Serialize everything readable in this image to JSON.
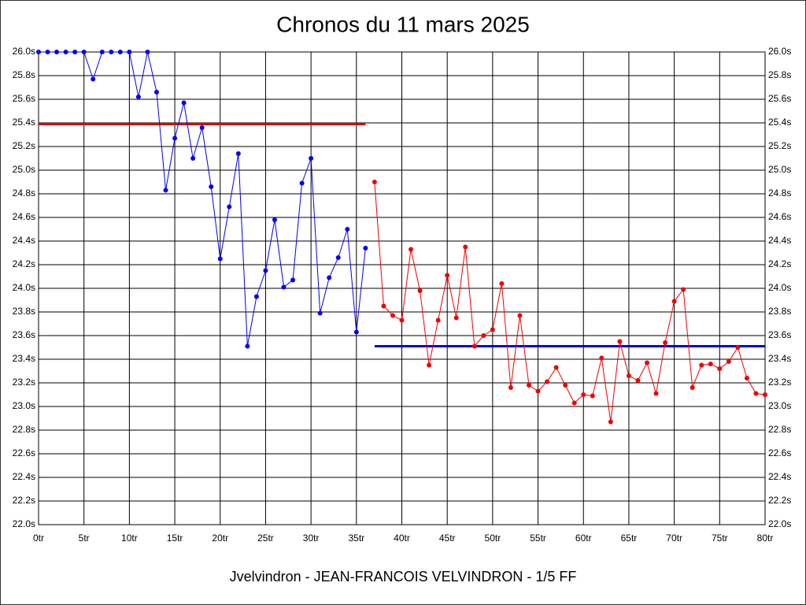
{
  "chart_data": {
    "type": "line",
    "title": "Chronos du 11 mars 2025",
    "footer": "Jvelvindron - JEAN-FRANCOIS VELVINDRON - 1/5 FF",
    "xlim": [
      0,
      80
    ],
    "xticks": [
      {
        "value": 0,
        "label": "0tr"
      },
      {
        "value": 5,
        "label": "5tr"
      },
      {
        "value": 10,
        "label": "10tr"
      },
      {
        "value": 15,
        "label": "15tr"
      },
      {
        "value": 20,
        "label": "20tr"
      },
      {
        "value": 25,
        "label": "25tr"
      },
      {
        "value": 30,
        "label": "30tr"
      },
      {
        "value": 35,
        "label": "35tr"
      },
      {
        "value": 40,
        "label": "40tr"
      },
      {
        "value": 45,
        "label": "45tr"
      },
      {
        "value": 50,
        "label": "50tr"
      },
      {
        "value": 55,
        "label": "55tr"
      },
      {
        "value": 60,
        "label": "60tr"
      },
      {
        "value": 65,
        "label": "65tr"
      },
      {
        "value": 70,
        "label": "70tr"
      },
      {
        "value": 75,
        "label": "75tr"
      },
      {
        "value": 80,
        "label": "80tr"
      }
    ],
    "ylim": [
      22,
      26
    ],
    "yticks": [
      {
        "value": 22,
        "label": "22.0s"
      },
      {
        "value": 22.2,
        "label": "22.2s"
      },
      {
        "value": 22.4,
        "label": "22.4s"
      },
      {
        "value": 22.6,
        "label": "22.6s"
      },
      {
        "value": 22.8,
        "label": "22.8s"
      },
      {
        "value": 23,
        "label": "23.0s"
      },
      {
        "value": 23.2,
        "label": "23.2s"
      },
      {
        "value": 23.4,
        "label": "23.4s"
      },
      {
        "value": 23.6,
        "label": "23.6s"
      },
      {
        "value": 23.8,
        "label": "23.8s"
      },
      {
        "value": 24,
        "label": "24.0s"
      },
      {
        "value": 24.2,
        "label": "24.2s"
      },
      {
        "value": 24.4,
        "label": "24.4s"
      },
      {
        "value": 24.6,
        "label": "24.6s"
      },
      {
        "value": 24.8,
        "label": "24.8s"
      },
      {
        "value": 25,
        "label": "25.0s"
      },
      {
        "value": 25.2,
        "label": "25.2s"
      },
      {
        "value": 25.4,
        "label": "25.4s"
      },
      {
        "value": 25.6,
        "label": "25.6s"
      },
      {
        "value": 25.8,
        "label": "25.8s"
      },
      {
        "value": 26,
        "label": "26.0s"
      }
    ],
    "grid": true,
    "series": [
      {
        "color": "#0000ee",
        "x": [
          0,
          1,
          2,
          3,
          4,
          5,
          6,
          7,
          8,
          9,
          10,
          11,
          12,
          13,
          14,
          15,
          16,
          17,
          18,
          19,
          20,
          21,
          22,
          23,
          24,
          25,
          26,
          27,
          28,
          29,
          30,
          31,
          32,
          33,
          34,
          35,
          36
        ],
        "values": [
          26,
          26,
          26,
          26,
          26,
          26,
          25.77,
          26,
          26,
          26,
          26,
          25.62,
          26,
          25.66,
          24.83,
          25.27,
          25.57,
          25.1,
          25.36,
          24.86,
          24.25,
          24.69,
          25.14,
          23.51,
          23.93,
          24.15,
          24.58,
          24.01,
          24.07,
          24.89,
          25.1,
          23.79,
          24.09,
          24.26,
          24.5,
          23.63,
          24.34
        ]
      },
      {
        "color": "#ee0000",
        "x": [
          37,
          38,
          39,
          40,
          41,
          42,
          43,
          44,
          45,
          46,
          47,
          48,
          49,
          50,
          51,
          52,
          53,
          54,
          55,
          56,
          57,
          58,
          59,
          60,
          61,
          62,
          63,
          64,
          65,
          66,
          67,
          68,
          69,
          70,
          71,
          72,
          73,
          74,
          75,
          76,
          77,
          78,
          79,
          80
        ],
        "values": [
          24.9,
          23.85,
          23.77,
          23.73,
          24.33,
          23.98,
          23.35,
          23.73,
          24.11,
          23.75,
          24.35,
          23.51,
          23.6,
          23.65,
          24.04,
          23.16,
          23.77,
          23.18,
          23.13,
          23.21,
          23.33,
          23.18,
          23.03,
          23.1,
          23.09,
          23.41,
          22.87,
          23.55,
          23.26,
          23.22,
          23.37,
          23.11,
          23.54,
          23.89,
          23.99,
          23.16,
          23.35,
          23.36,
          23.32,
          23.38,
          23.5,
          23.24,
          23.11,
          23.1
        ]
      }
    ],
    "reference_lines": [
      {
        "color": "#dd0000",
        "value": 25.39,
        "x": [
          0,
          36
        ]
      },
      {
        "color": "#0000dd",
        "value": 23.51,
        "x": [
          37,
          80
        ]
      }
    ]
  }
}
